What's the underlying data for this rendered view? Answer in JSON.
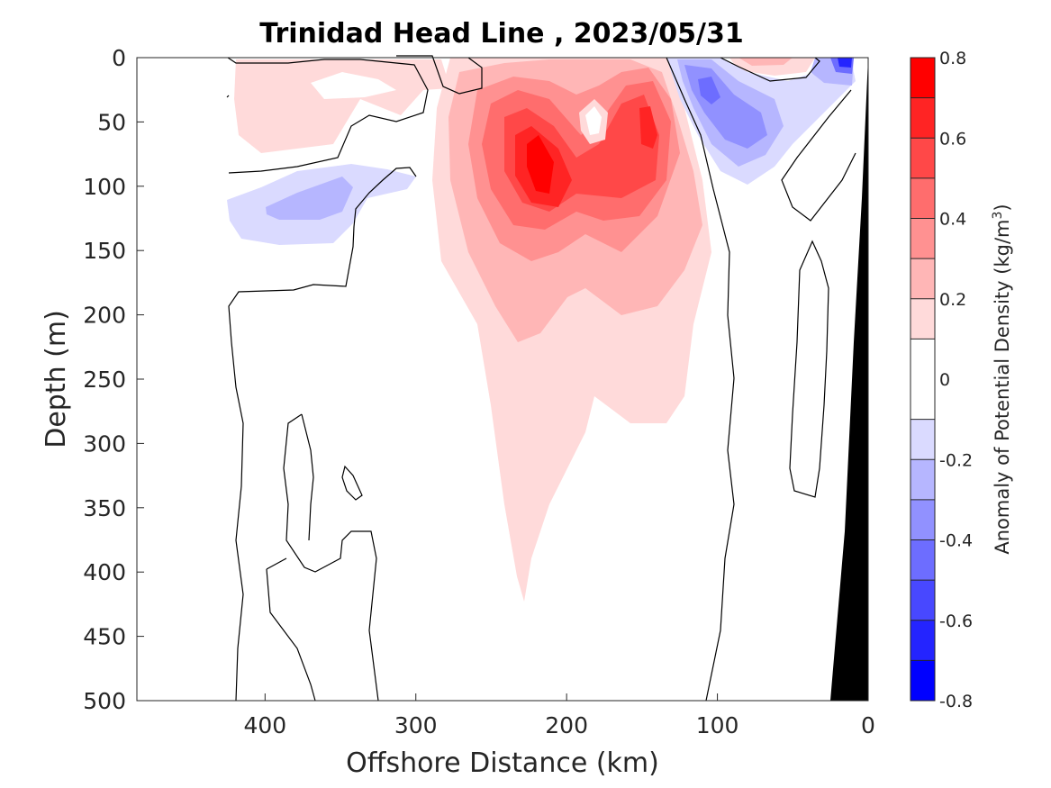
{
  "chart_data": {
    "type": "heatmap",
    "title": "Trinidad Head Line , 2023/05/31",
    "xlabel": "Offshore Distance (km)",
    "ylabel": "Depth (m)",
    "xlim": [
      485,
      0
    ],
    "ylim": [
      0,
      500
    ],
    "x_direction": "reversed",
    "y_direction": "reversed (depth increases downward)",
    "x_ticks": [
      400,
      300,
      200,
      100,
      0
    ],
    "y_ticks": [
      0,
      50,
      100,
      150,
      200,
      250,
      300,
      350,
      400,
      450,
      500
    ],
    "colorbar": {
      "label_prefix": "Anomaly of Potential Density (kg/m",
      "label_sup": "3",
      "label_suffix": ")",
      "range": [
        -0.8,
        0.8
      ],
      "ticks": [
        0.8,
        0.6,
        0.4,
        0.2,
        0,
        -0.2,
        -0.4,
        -0.6,
        -0.8
      ],
      "levels": [
        -0.8,
        -0.7,
        -0.6,
        -0.5,
        -0.4,
        -0.3,
        -0.2,
        -0.1,
        0.1,
        0.2,
        0.3,
        0.4,
        0.5,
        0.6,
        0.7,
        0.8
      ],
      "colors": [
        "#0000ff",
        "#2424ff",
        "#4848ff",
        "#6d6dff",
        "#9191ff",
        "#b6b6ff",
        "#dadaff",
        "#ffffff",
        "#ffdada",
        "#ffb6b6",
        "#ff9191",
        "#ff6d6d",
        "#ff4848",
        "#ff2424",
        "#ff0000"
      ]
    },
    "features": {
      "positive_core": {
        "offshore_km": 220,
        "depth_m": 90,
        "peak_anomaly": 0.75
      },
      "secondary_positive_core": {
        "offshore_km": 150,
        "depth_m": 55,
        "peak_anomaly": 0.65
      },
      "negative_core_nearshore": {
        "offshore_km": 82,
        "depth_m": 45,
        "peak_anomaly": -0.45
      },
      "negative_surface_patch": {
        "offshore_km": 18,
        "depth_m": 5,
        "peak_anomaly": -0.7
      },
      "negative_offshore_patch": {
        "offshore_km": 360,
        "depth_m": 115,
        "peak_anomaly": -0.25
      },
      "positive_offshore_surface": {
        "offshore_km": 360,
        "depth_m": 40,
        "peak_anomaly": 0.2
      }
    },
    "bathymetry": {
      "color": "#000000",
      "shelf_km_at_500m": 25,
      "shelf_km_at_0m": 0
    },
    "grid": false
  }
}
